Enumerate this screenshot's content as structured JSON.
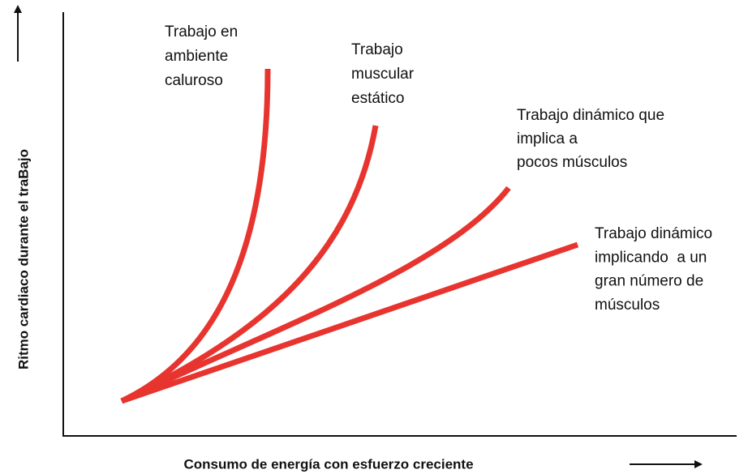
{
  "y_axis_label": "Ritmo cardiaco durante el traBajo",
  "x_axis_label": "Consumo de energía con esfuerzo creciente",
  "curves": [
    {
      "label_lines": [
        "Trabajo en",
        "ambiente",
        "caluroso"
      ]
    },
    {
      "label_lines": [
        "Trabajo",
        "muscular",
        "estático"
      ]
    },
    {
      "label_lines": [
        "Trabajo dinámico que",
        "implica a",
        "pocos músculos"
      ]
    },
    {
      "label_lines": [
        "Trabajo dinámico",
        "implicando  a un",
        "gran número de",
        "músculos"
      ]
    }
  ]
}
